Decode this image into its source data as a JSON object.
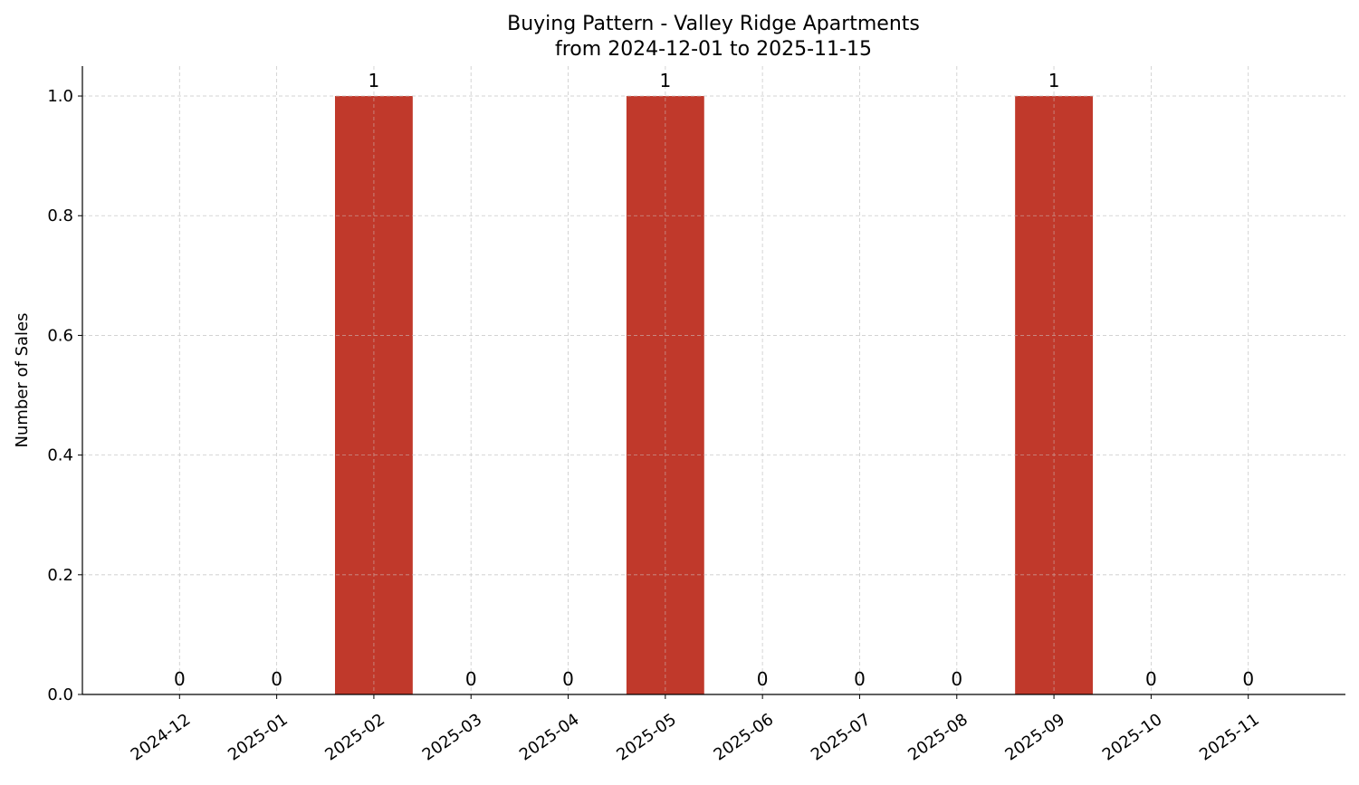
{
  "chart_data": {
    "type": "bar",
    "title": "Buying Pattern - Valley Ridge Apartments",
    "subtitle": "from 2024-12-01 to 2025-11-15",
    "xlabel": "",
    "ylabel": "Number of Sales",
    "categories": [
      "2024-12",
      "2025-01",
      "2025-02",
      "2025-03",
      "2025-04",
      "2025-05",
      "2025-06",
      "2025-07",
      "2025-08",
      "2025-09",
      "2025-10",
      "2025-11"
    ],
    "values": [
      0,
      0,
      1,
      0,
      0,
      1,
      0,
      0,
      0,
      1,
      0,
      0
    ],
    "data_labels": [
      "0",
      "0",
      "1",
      "0",
      "0",
      "1",
      "0",
      "0",
      "0",
      "1",
      "0",
      "0"
    ],
    "ylim": [
      0,
      1.05
    ],
    "yticks": [
      "0.0",
      "0.2",
      "0.4",
      "0.6",
      "0.8",
      "1.0"
    ],
    "grid": true,
    "bar_color": "#c0392b"
  }
}
